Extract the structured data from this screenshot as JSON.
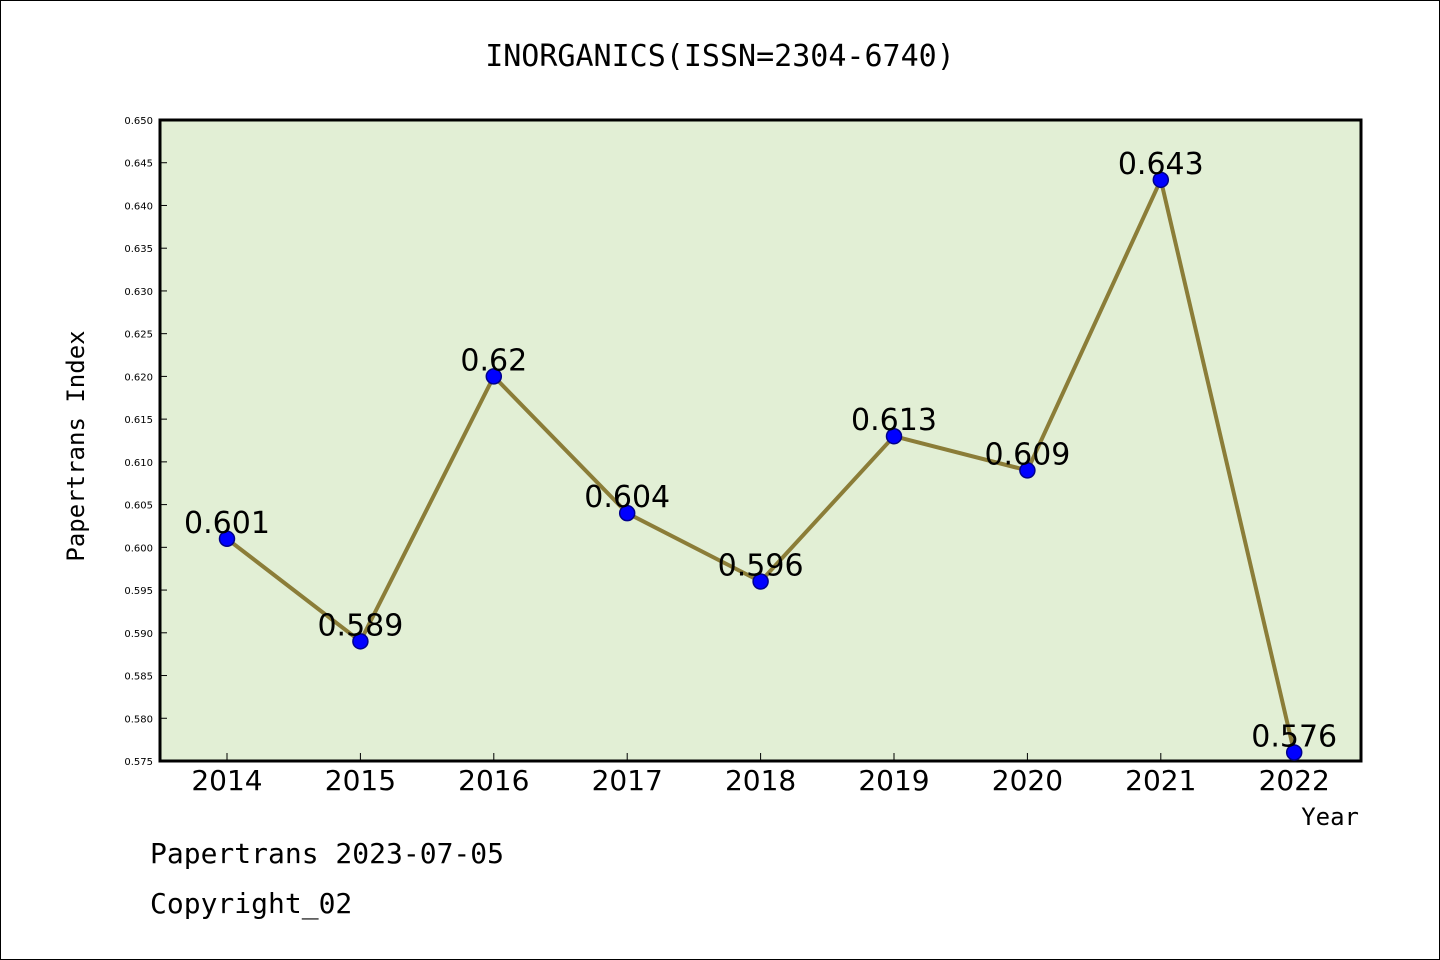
{
  "chart_data": {
    "type": "line",
    "title": "INORGANICS(ISSN=2304-6740)",
    "xlabel": "Year",
    "ylabel": "Papertrans Index",
    "categories": [
      "2014",
      "2015",
      "2016",
      "2017",
      "2018",
      "2019",
      "2020",
      "2021",
      "2022"
    ],
    "series": [
      {
        "values": [
          0.601,
          0.589,
          0.62,
          0.604,
          0.596,
          0.613,
          0.609,
          0.643,
          0.576
        ],
        "labels": [
          "0.601",
          "0.589",
          "0.62",
          "0.604",
          "0.596",
          "0.613",
          "0.609",
          "0.643",
          "0.576"
        ]
      }
    ],
    "ylim": [
      0.575,
      0.65
    ],
    "yticks": [
      "0.575",
      "0.580",
      "0.585",
      "0.590",
      "0.595",
      "0.600",
      "0.605",
      "0.610",
      "0.615",
      "0.620",
      "0.625",
      "0.630",
      "0.635",
      "0.640",
      "0.645",
      "0.650"
    ],
    "grid": false,
    "legend": "none",
    "colors": {
      "plot_bg": "#e2efd5",
      "line": "#8b7d38",
      "marker": "#0000ff",
      "marker_edge": "#00008b"
    }
  },
  "footer": {
    "line1": "Papertrans 2023-07-05",
    "line2": "Copyright_02"
  }
}
